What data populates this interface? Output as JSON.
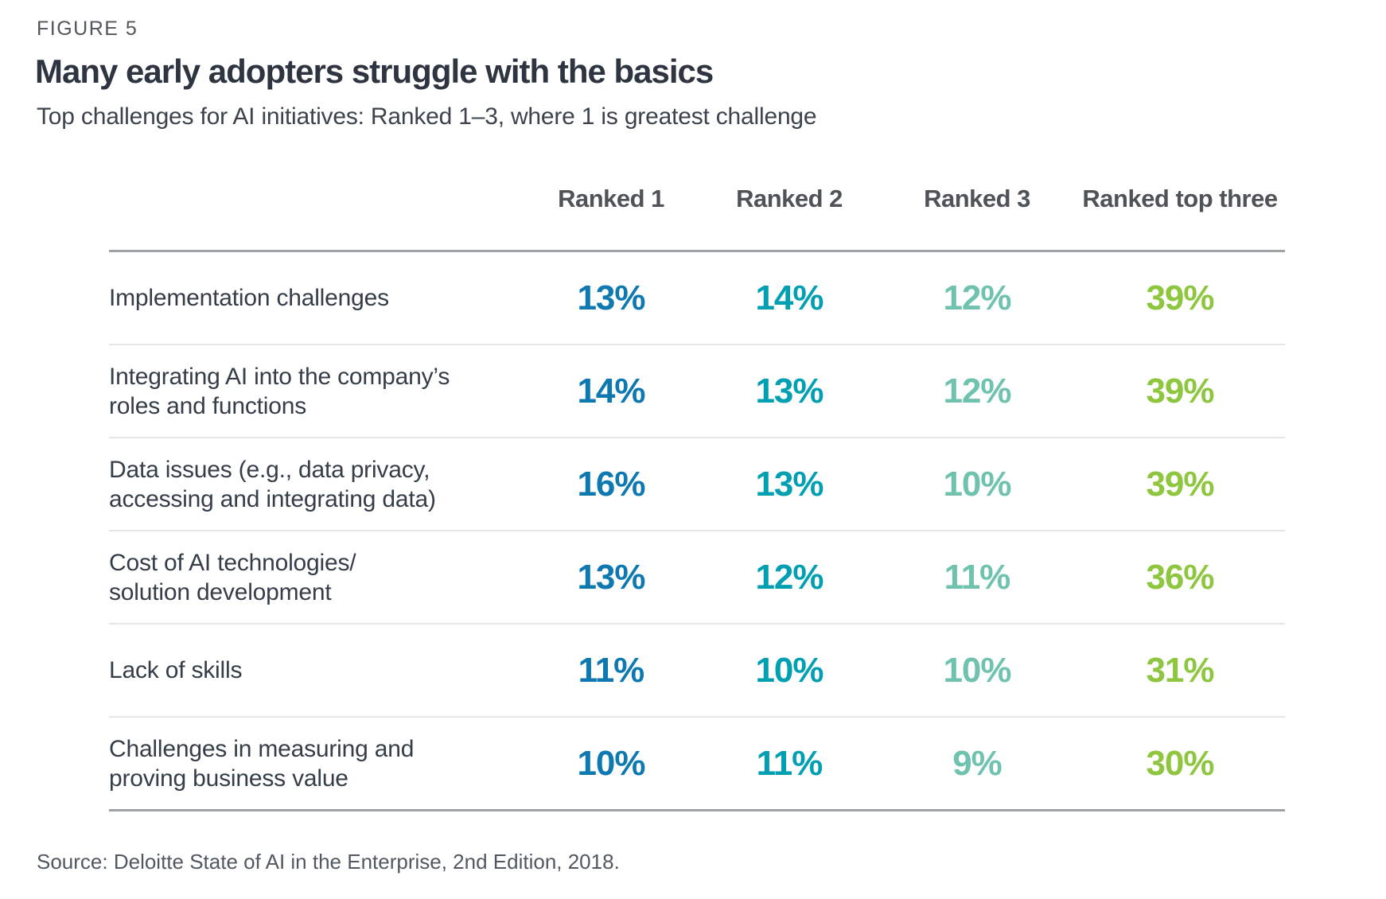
{
  "figure_label": "FIGURE 5",
  "title": "Many early adopters struggle with the basics",
  "subtitle": "Top challenges for AI initiatives: Ranked 1–3, where 1 is greatest challenge",
  "source": "Source: Deloitte State of AI in the Enterprise, 2nd Edition, 2018.",
  "colors": {
    "ranked_1_blue": "#0e78b0",
    "ranked_2_teal": "#00a0b2",
    "ranked_3_mint": "#6fc3ae",
    "top_three_green": "#8ec63f",
    "rule_dark": "#9fa3a6",
    "rule_light": "#e5e6e7"
  },
  "chart_data": {
    "type": "table",
    "title": "Many early adopters struggle with the basics",
    "subtitle": "Top challenges for AI initiatives: Ranked 1–3, where 1 is greatest challenge",
    "columns": [
      "Ranked 1",
      "Ranked 2",
      "Ranked 3",
      "Ranked top three"
    ],
    "value_colors_by_column": [
      "#0e78b0",
      "#00a0b2",
      "#6fc3ae",
      "#8ec63f"
    ],
    "rows": [
      {
        "label": "Implementation challenges",
        "values": [
          "13%",
          "14%",
          "12%",
          "39%"
        ]
      },
      {
        "label": "Integrating AI into the company’s\nroles and functions",
        "values": [
          "14%",
          "13%",
          "12%",
          "39%"
        ]
      },
      {
        "label": "Data issues (e.g., data privacy,\naccessing and integrating data)",
        "values": [
          "16%",
          "13%",
          "10%",
          "39%"
        ]
      },
      {
        "label": "Cost of AI technologies/\nsolution development",
        "values": [
          "13%",
          "12%",
          "11%",
          "36%"
        ]
      },
      {
        "label": "Lack of skills",
        "values": [
          "11%",
          "10%",
          "10%",
          "31%"
        ]
      },
      {
        "label": "Challenges in measuring and\nproving business value",
        "values": [
          "10%",
          "11%",
          "9%",
          "30%"
        ]
      }
    ],
    "source": "Source: Deloitte State of AI in the Enterprise, 2nd Edition, 2018."
  }
}
